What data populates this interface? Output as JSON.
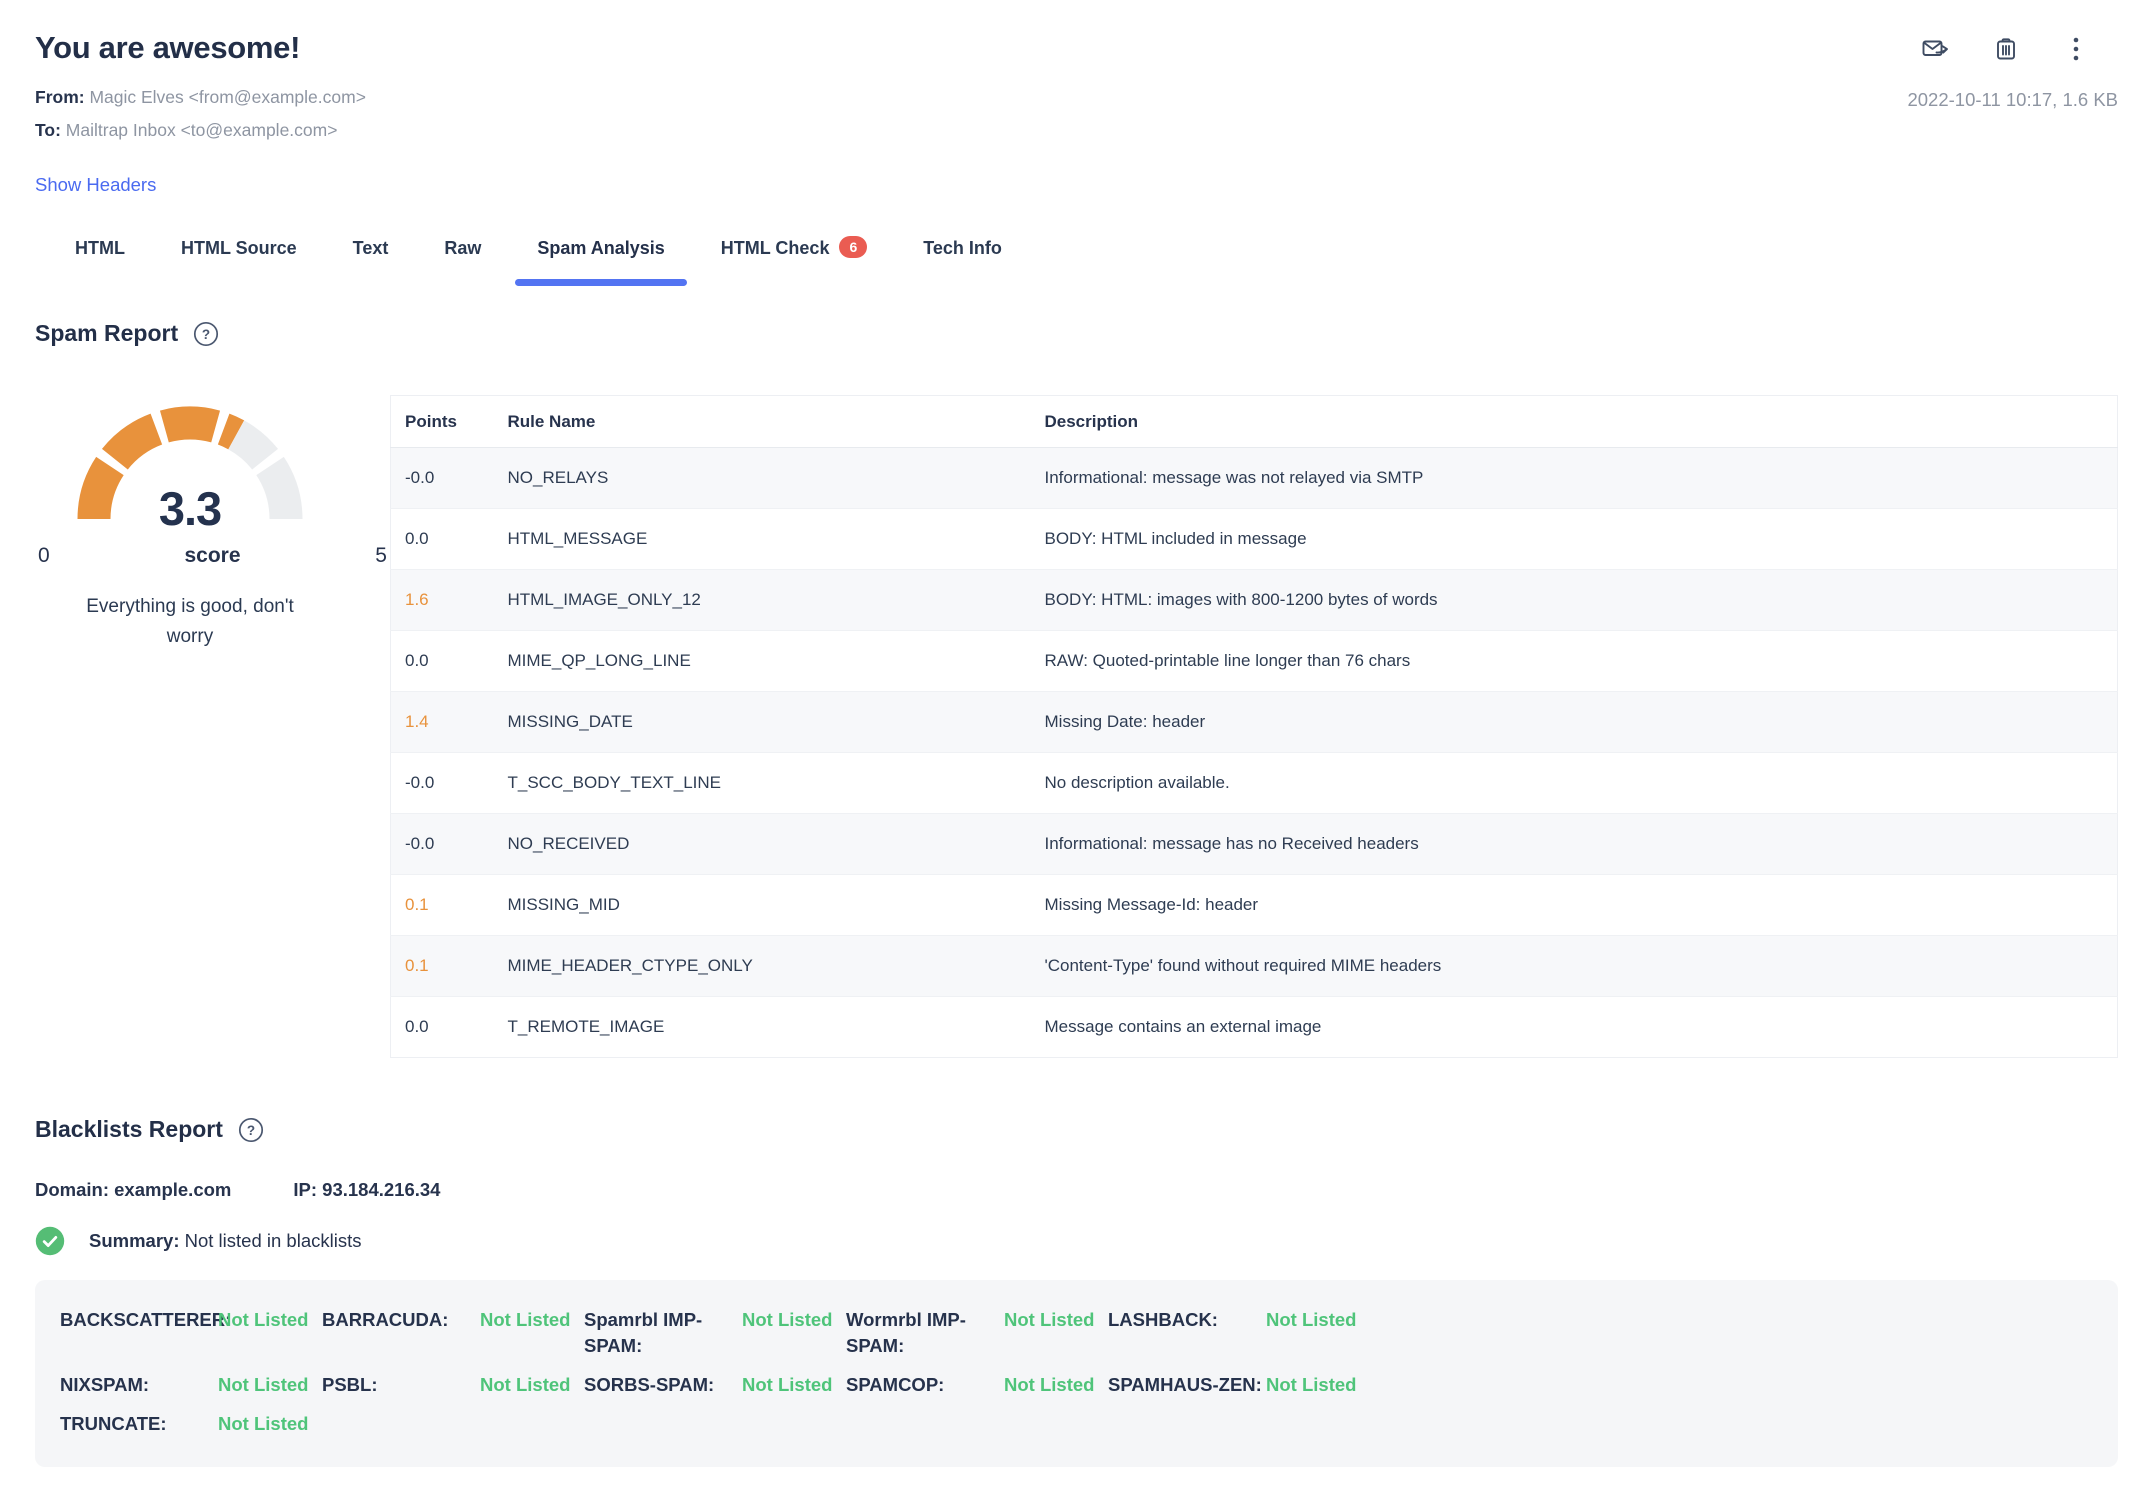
{
  "header": {
    "title": "You are awesome!",
    "from_label": "From:",
    "from_value": "Magic Elves <from@example.com>",
    "to_label": "To:",
    "to_value": "Mailtrap Inbox <to@example.com>",
    "show_headers_label": "Show Headers",
    "timestamp": "2022-10-11 10:17, 1.6 KB",
    "action_icons": [
      "forward-email-icon",
      "delete-icon",
      "more-options-icon"
    ]
  },
  "tabs": [
    {
      "label": "HTML",
      "active": false
    },
    {
      "label": "HTML Source",
      "active": false
    },
    {
      "label": "Text",
      "active": false
    },
    {
      "label": "Raw",
      "active": false
    },
    {
      "label": "Spam Analysis",
      "active": true
    },
    {
      "label": "HTML Check",
      "active": false,
      "badge": "6"
    },
    {
      "label": "Tech Info",
      "active": false
    }
  ],
  "spam_report": {
    "title": "Spam Report",
    "gauge": {
      "value": 3.3,
      "score_display": "3.3",
      "score_label": "score",
      "min_label": "0",
      "max_label": "5",
      "max_value": 5,
      "segments": 5,
      "caption": "Everything is good, don't worry",
      "fill_color": "#e8923c",
      "track_color": "#ebedef"
    },
    "columns": [
      "Points",
      "Rule Name",
      "Description"
    ],
    "rows": [
      {
        "points": "-0.0",
        "rule": "NO_RELAYS",
        "description": "Informational: message was not relayed via SMTP",
        "highlight": false
      },
      {
        "points": "0.0",
        "rule": "HTML_MESSAGE",
        "description": "BODY: HTML included in message",
        "highlight": false
      },
      {
        "points": "1.6",
        "rule": "HTML_IMAGE_ONLY_12",
        "description": "BODY: HTML: images with 800-1200 bytes of words",
        "highlight": true
      },
      {
        "points": "0.0",
        "rule": "MIME_QP_LONG_LINE",
        "description": "RAW: Quoted-printable line longer than 76 chars",
        "highlight": false
      },
      {
        "points": "1.4",
        "rule": "MISSING_DATE",
        "description": "Missing Date: header",
        "highlight": true
      },
      {
        "points": "-0.0",
        "rule": "T_SCC_BODY_TEXT_LINE",
        "description": "No description available.",
        "highlight": false
      },
      {
        "points": "-0.0",
        "rule": "NO_RECEIVED",
        "description": "Informational: message has no Received headers",
        "highlight": false
      },
      {
        "points": "0.1",
        "rule": "MISSING_MID",
        "description": "Missing Message-Id: header",
        "highlight": true
      },
      {
        "points": "0.1",
        "rule": "MIME_HEADER_CTYPE_ONLY",
        "description": "'Content-Type' found without required MIME headers",
        "highlight": true
      },
      {
        "points": "0.0",
        "rule": "T_REMOTE_IMAGE",
        "description": "Message contains an external image",
        "highlight": false
      }
    ]
  },
  "blacklists": {
    "title": "Blacklists Report",
    "domain_label": "Domain:",
    "domain_value": "example.com",
    "ip_label": "IP:",
    "ip_value": "93.184.216.34",
    "summary_label": "Summary:",
    "summary_value": "Not listed in blacklists",
    "entries": [
      {
        "name": "BACKSCATTERER:",
        "status": "Not Listed"
      },
      {
        "name": "BARRACUDA:",
        "status": "Not Listed"
      },
      {
        "name": "Spamrbl IMP-SPAM:",
        "status": "Not Listed"
      },
      {
        "name": "Wormrbl IMP-SPAM:",
        "status": "Not Listed"
      },
      {
        "name": "LASHBACK:",
        "status": "Not Listed"
      },
      {
        "name": "NIXSPAM:",
        "status": "Not Listed"
      },
      {
        "name": "PSBL:",
        "status": "Not Listed"
      },
      {
        "name": "SORBS-SPAM:",
        "status": "Not Listed"
      },
      {
        "name": "SPAMCOP:",
        "status": "Not Listed"
      },
      {
        "name": "SPAMHAUS-ZEN:",
        "status": "Not Listed"
      },
      {
        "name": "TRUNCATE:",
        "status": "Not Listed"
      }
    ]
  },
  "colors": {
    "accent_blue": "#5374f2",
    "link_blue": "#4a6af0",
    "orange": "#e8923c",
    "badge_red": "#ea5c52",
    "summary_green": "#55bd75",
    "status_green": "#4fc47a",
    "navy": "#27334d"
  }
}
